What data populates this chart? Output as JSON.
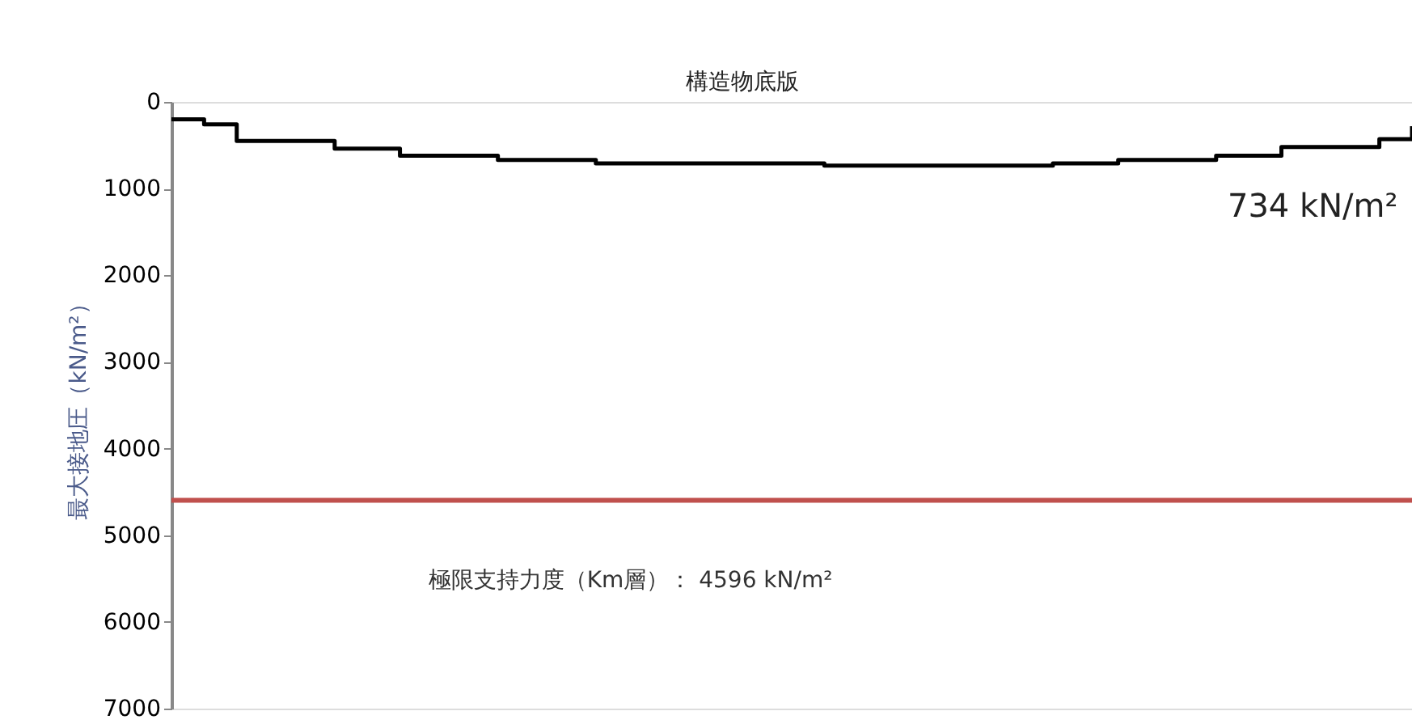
{
  "chart_data": {
    "type": "step",
    "ylabel": "最大接地圧（kN/m²）",
    "categories": [
      null,
      null,
      null,
      null,
      null,
      null,
      null,
      null,
      null,
      null,
      null,
      null,
      null,
      null,
      null,
      null,
      null,
      null,
      null,
      null,
      null,
      null,
      null,
      null,
      null,
      null,
      null,
      null,
      null,
      null,
      null,
      null,
      null,
      null,
      null,
      null,
      null,
      null,
      null
    ],
    "series": [
      {
        "color": "#000000",
        "values": [
          200,
          260,
          450,
          450,
          450,
          540,
          540,
          620,
          620,
          620,
          670,
          670,
          670,
          710,
          710,
          710,
          710,
          710,
          710,
          710,
          734,
          734,
          734,
          734,
          734,
          734,
          734,
          710,
          710,
          670,
          670,
          670,
          620,
          620,
          520,
          520,
          520,
          430,
          280
        ]
      }
    ],
    "ylim": [
      7000,
      0
    ],
    "yticks": [
      0,
      1000,
      2000,
      3000,
      4000,
      5000,
      6000,
      7000
    ],
    "ref_lines": [
      {
        "axis": "y",
        "value": 4596,
        "label": "極限支持力度（Km層）：  4596  kN/m²",
        "color": "#c0504d"
      }
    ],
    "annotations": [
      "構造物底版",
      "734 kN/m²"
    ],
    "tick_labels": "y",
    "grid": false
  }
}
